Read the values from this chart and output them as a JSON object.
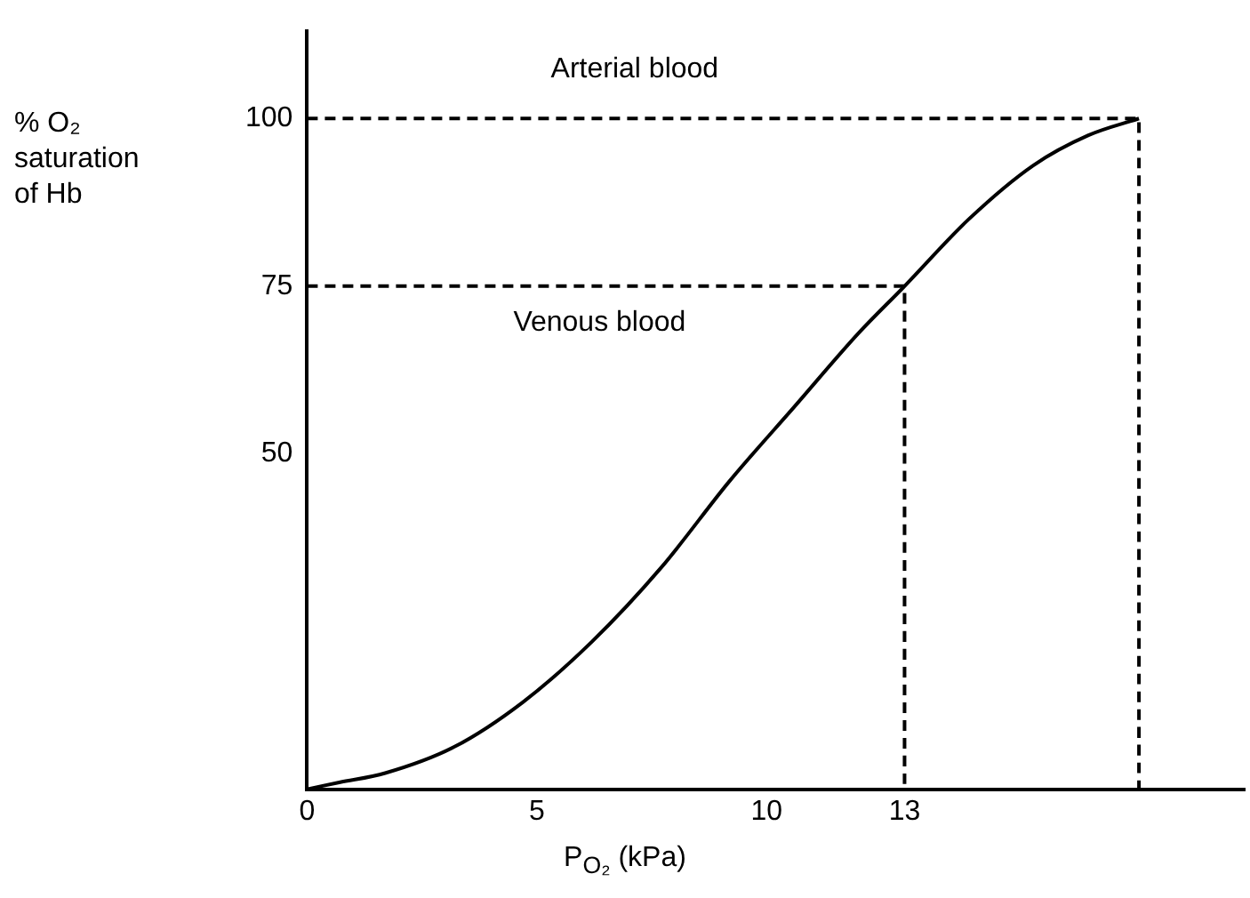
{
  "chart_data": {
    "type": "line",
    "xlabel": "P$_{O₂}$ (kPa)",
    "ylabel": "% O₂ saturation of Hb",
    "xlim": [
      0,
      20.4
    ],
    "ylim": [
      0,
      113
    ],
    "xticks": [
      0,
      5,
      10,
      13
    ],
    "yticks": [
      50,
      75,
      100
    ],
    "grid": false,
    "legend": false,
    "marker": "none",
    "annotations": [
      "Arterial blood",
      "Venous blood"
    ],
    "series": [
      {
        "color": "#000000",
        "line_style": "solid",
        "x": [
          0,
          0.7,
          1.7,
          3.2,
          4.7,
          6.2,
          7.7,
          9.2,
          10.6,
          12,
          13,
          14.4,
          15.8,
          17,
          18.1
        ],
        "values": [
          0,
          1,
          2.4,
          6.3,
          13,
          22,
          33,
          46,
          57,
          68,
          75,
          85,
          93,
          97.5,
          100
        ]
      },
      {
        "color": "#000000",
        "line_style": "dashed",
        "x": [
          0,
          13,
          13
        ],
        "values": [
          75,
          75,
          0
        ]
      },
      {
        "color": "#000000",
        "line_style": "dashed",
        "x": [
          0,
          18.1,
          18.1
        ],
        "values": [
          100,
          100,
          0
        ]
      }
    ]
  }
}
